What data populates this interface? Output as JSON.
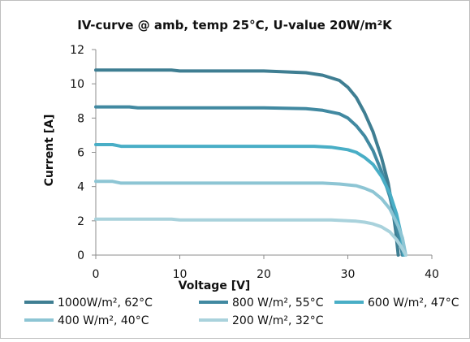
{
  "chart_data": {
    "type": "line",
    "title": "IV-curve @ amb, temp 25°C, U-value 20W/m²K",
    "xlabel": "Voltage [V]",
    "ylabel": "Current [A]",
    "xlim": [
      0,
      40
    ],
    "ylim": [
      0,
      12
    ],
    "xticks": [
      0,
      10,
      20,
      30,
      40
    ],
    "yticks": [
      0,
      2,
      4,
      6,
      8,
      10,
      12
    ],
    "grid": false,
    "legend_position": "bottom",
    "series": [
      {
        "name": "1000W/m², 62°C",
        "color": "#3f7e92",
        "points": [
          [
            0,
            10.8
          ],
          [
            5,
            10.8
          ],
          [
            9,
            10.8
          ],
          [
            10,
            10.75
          ],
          [
            15,
            10.75
          ],
          [
            20,
            10.75
          ],
          [
            25,
            10.65
          ],
          [
            27,
            10.5
          ],
          [
            29,
            10.2
          ],
          [
            30,
            9.8
          ],
          [
            31,
            9.2
          ],
          [
            32,
            8.3
          ],
          [
            33,
            7.2
          ],
          [
            34,
            5.7
          ],
          [
            34.8,
            4.2
          ],
          [
            35.3,
            2.8
          ],
          [
            35.7,
            1.4
          ],
          [
            36,
            0
          ]
        ]
      },
      {
        "name": "800 W/m², 55°C",
        "color": "#4189a1",
        "points": [
          [
            0,
            8.65
          ],
          [
            4,
            8.65
          ],
          [
            5,
            8.6
          ],
          [
            10,
            8.6
          ],
          [
            15,
            8.6
          ],
          [
            20,
            8.6
          ],
          [
            25,
            8.55
          ],
          [
            27,
            8.45
          ],
          [
            29,
            8.25
          ],
          [
            30,
            8.0
          ],
          [
            31,
            7.55
          ],
          [
            32,
            6.95
          ],
          [
            33,
            6.1
          ],
          [
            34,
            4.9
          ],
          [
            35,
            3.4
          ],
          [
            35.6,
            2.1
          ],
          [
            36.2,
            0.8
          ],
          [
            36.5,
            0
          ]
        ]
      },
      {
        "name": "600 W/m², 47°C",
        "color": "#49aec6",
        "points": [
          [
            0,
            6.45
          ],
          [
            2,
            6.45
          ],
          [
            3,
            6.35
          ],
          [
            10,
            6.35
          ],
          [
            20,
            6.35
          ],
          [
            26,
            6.35
          ],
          [
            28,
            6.3
          ],
          [
            30,
            6.15
          ],
          [
            31,
            6.0
          ],
          [
            32,
            5.7
          ],
          [
            33,
            5.3
          ],
          [
            34,
            4.6
          ],
          [
            35,
            3.6
          ],
          [
            35.8,
            2.4
          ],
          [
            36.3,
            1.3
          ],
          [
            36.7,
            0
          ]
        ]
      },
      {
        "name": "400 W/m², 40°C",
        "color": "#8dc5d4",
        "points": [
          [
            0,
            4.3
          ],
          [
            2,
            4.3
          ],
          [
            3,
            4.2
          ],
          [
            10,
            4.2
          ],
          [
            20,
            4.2
          ],
          [
            27,
            4.2
          ],
          [
            29,
            4.15
          ],
          [
            31,
            4.05
          ],
          [
            32,
            3.9
          ],
          [
            33,
            3.7
          ],
          [
            34,
            3.3
          ],
          [
            35,
            2.7
          ],
          [
            36,
            1.7
          ],
          [
            36.5,
            1.0
          ],
          [
            36.9,
            0
          ]
        ]
      },
      {
        "name": "200 W/m², 32°C",
        "color": "#a9d2dc",
        "points": [
          [
            0,
            2.1
          ],
          [
            9,
            2.1
          ],
          [
            10,
            2.05
          ],
          [
            20,
            2.05
          ],
          [
            28,
            2.05
          ],
          [
            31,
            1.98
          ],
          [
            32,
            1.92
          ],
          [
            33,
            1.82
          ],
          [
            34,
            1.65
          ],
          [
            35,
            1.35
          ],
          [
            35.8,
            0.9
          ],
          [
            36.4,
            0.45
          ],
          [
            36.9,
            0
          ]
        ]
      }
    ]
  }
}
